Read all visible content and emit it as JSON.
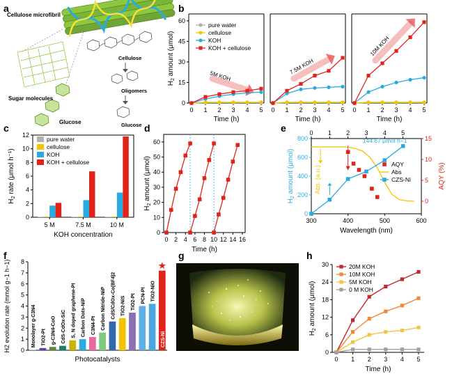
{
  "panel_labels": [
    "a",
    "b",
    "c",
    "d",
    "e",
    "f",
    "g",
    "h"
  ],
  "panel_a": {
    "labels": [
      "Cellulose microfibril",
      "Cellulose",
      "Oligomers",
      "Sugar molecules",
      "Glucose",
      "Glucose"
    ],
    "colors": {
      "fiber_green": "#8dc63f",
      "fiber_blue": "#29abe2",
      "fiber_yellow": "#f7e03c",
      "molecule": "#3a3a3a"
    }
  },
  "chart_data": [
    {
      "panel": "b",
      "type": "line",
      "title": "",
      "xlabel": "Time (h)",
      "ylabel": "H2 amount (μmol)",
      "ylim": [
        0,
        65
      ],
      "yticks": [
        0,
        15,
        30,
        45,
        60
      ],
      "xticks": [
        0,
        1,
        2,
        3,
        4,
        5
      ],
      "legend": [
        "pure water",
        "cellulose",
        "KOH",
        "KOH + cellulose"
      ],
      "legend_colors": [
        "#b0b0b0",
        "#f5c400",
        "#29abe2",
        "#e2231a"
      ],
      "groups": [
        {
          "annotation": "5M KOH",
          "x": [
            0,
            1,
            2,
            3,
            4,
            5
          ],
          "series": [
            {
              "name": "pure water",
              "values": [
                0,
                0.3,
                0.3,
                0.3,
                0.3,
                0.3
              ]
            },
            {
              "name": "cellulose",
              "values": [
                0,
                0.6,
                0.6,
                0.6,
                0.6,
                0.6
              ]
            },
            {
              "name": "KOH",
              "values": [
                0,
                3,
                5,
                6.5,
                7.5,
                8
              ]
            },
            {
              "name": "KOH + cellulose",
              "values": [
                0,
                4.5,
                6.5,
                8,
                9,
                10.5
              ]
            }
          ]
        },
        {
          "annotation": "7.5M KOH",
          "x": [
            0,
            1,
            2,
            3,
            4,
            5
          ],
          "series": [
            {
              "name": "pure water",
              "values": [
                0,
                0.3,
                0.3,
                0.3,
                0.3,
                0.3
              ]
            },
            {
              "name": "cellulose",
              "values": [
                0,
                0.6,
                0.6,
                0.6,
                0.6,
                0.6
              ]
            },
            {
              "name": "KOH",
              "values": [
                0,
                7,
                10,
                11,
                11.5,
                12
              ]
            },
            {
              "name": "KOH + cellulose",
              "values": [
                0,
                9,
                14,
                20,
                23.5,
                33
              ]
            }
          ]
        },
        {
          "annotation": "10M KOH",
          "x": [
            0,
            1,
            2,
            3,
            4,
            5
          ],
          "series": [
            {
              "name": "pure water",
              "values": [
                0,
                0.3,
                0.3,
                0.3,
                0.3,
                0.3
              ]
            },
            {
              "name": "cellulose",
              "values": [
                0,
                0.6,
                0.6,
                0.6,
                0.6,
                0.6
              ]
            },
            {
              "name": "KOH",
              "values": [
                0,
                8,
                12,
                15,
                17,
                18.5
              ]
            },
            {
              "name": "KOH + cellulose",
              "values": [
                0,
                20,
                29,
                38,
                48,
                59
              ]
            }
          ]
        }
      ]
    },
    {
      "panel": "c",
      "type": "bar",
      "xlabel": "KOH concentration",
      "ylabel": "H2 rate (μmol h−1)",
      "ylim": [
        0,
        12
      ],
      "yticks": [
        0,
        2,
        4,
        6,
        8,
        10,
        12
      ],
      "categories": [
        "5 M",
        "7.5 M",
        "10 M"
      ],
      "series": [
        {
          "name": "pure water",
          "color": "#b0b0b0",
          "values": [
            0.05,
            0.05,
            0.05
          ]
        },
        {
          "name": "cellulose",
          "color": "#f5c400",
          "values": [
            0.1,
            0.1,
            0.1
          ]
        },
        {
          "name": "KOH",
          "color": "#29abe2",
          "values": [
            1.7,
            2.5,
            3.6
          ]
        },
        {
          "name": "KOH + cellulose",
          "color": "#e2231a",
          "values": [
            2.1,
            6.7,
            11.8
          ]
        }
      ]
    },
    {
      "panel": "d",
      "type": "line",
      "xlabel": "Time (h)",
      "ylabel": "H2 amount (μmol)",
      "ylim": [
        0,
        65
      ],
      "yticks": [
        0,
        10,
        20,
        30,
        40,
        50,
        60
      ],
      "xticks": [
        0,
        2,
        4,
        6,
        8,
        10,
        12,
        14,
        16
      ],
      "xlim": [
        0,
        16
      ],
      "cycles": [
        {
          "x": [
            0,
            1,
            2,
            3,
            4,
            5
          ],
          "values": [
            0,
            15,
            29,
            40,
            51,
            59
          ]
        },
        {
          "x": [
            5,
            6,
            7,
            8,
            9,
            10
          ],
          "values": [
            0,
            11,
            22,
            36,
            48,
            59
          ]
        },
        {
          "x": [
            10,
            11,
            12,
            13,
            14,
            15
          ],
          "values": [
            0,
            12,
            23,
            35,
            47,
            58
          ]
        }
      ],
      "color": "#e2231a"
    },
    {
      "panel": "e",
      "type": "scatter",
      "xlabel": "Wavelength (nm)",
      "ylabel_left": "H2 amount (μmol)",
      "ylabel_right": "AQY (%)",
      "ylabel_abs": "Abs. (a.u.)",
      "xlim": [
        300,
        600
      ],
      "xticks": [
        300,
        400,
        500,
        600
      ],
      "top_xticks": [
        0,
        1,
        2,
        3,
        4,
        5
      ],
      "left_ylim": [
        0,
        800
      ],
      "left_yticks": [
        0,
        200,
        400,
        600,
        800
      ],
      "right_ylim": [
        -3,
        15
      ],
      "right_yticks": [
        0,
        5,
        10,
        15
      ],
      "annotation": "144.67 μmol h−1",
      "legend": [
        "AQY",
        "Abs",
        "CZS-Ni"
      ],
      "legend_colors": [
        "#e2231a",
        "#f5c400",
        "#29abe2"
      ],
      "czs_ni": {
        "x": [
          300,
          350,
          400,
          450,
          500,
          550
        ],
        "values": [
          0,
          150,
          370,
          450,
          570,
          720
        ]
      },
      "aqy": {
        "x": [
          400,
          415,
          430,
          445,
          465,
          480
        ],
        "values": [
          11.8,
          9.0,
          7.5,
          6.0,
          3.0,
          1.0
        ]
      },
      "abs": {
        "x": [
          300,
          350,
          400,
          420,
          440,
          460,
          480,
          500,
          520,
          540,
          560,
          580
        ],
        "values": [
          13,
          13,
          13,
          12.6,
          12,
          10.5,
          8,
          4.5,
          1.6,
          0.4,
          0.1,
          0
        ]
      }
    },
    {
      "panel": "f",
      "type": "bar",
      "xlabel": "Photocatalysts",
      "ylabel": "H2 evolution rate (mmol g−1 h−1)",
      "ylim": [
        0,
        8
      ],
      "yticks": [
        0,
        1,
        2,
        3,
        4,
        5,
        6,
        7,
        8
      ],
      "categories": [
        "Monolayer g-C3N4",
        "TiO2-Pt",
        "g-C3N4-CoO",
        "CdS-CdOx-SiC",
        "S, N doped graphene-Pt",
        "Carbon Dots-NiP",
        "C3N4-Pt",
        "Carbon Nitride-NiP",
        "CdS/CdOx-Co(BF4)2",
        "TiO2-NiS",
        "TiO2-Pt",
        "PCN-Pt",
        "TiO2-NiO",
        "CZS-Ni"
      ],
      "values": [
        0.05,
        0.2,
        0.3,
        0.4,
        0.9,
        1.0,
        1.2,
        1.6,
        2.6,
        2.9,
        3.4,
        4.0,
        4.2,
        7.2
      ],
      "colors": [
        "#9fd6ef",
        "#6b3fa0",
        "#5b8c3a",
        "#1b7e6a",
        "#c9b400",
        "#29abe2",
        "#e76aa1",
        "#7fc97f",
        "#3366aa",
        "#f5c400",
        "#8c6fb5",
        "#5bb0e6",
        "#4ca6e0",
        "#e2231a"
      ]
    },
    {
      "panel": "h",
      "type": "line",
      "xlabel": "Time (h)",
      "ylabel": "H2 amount (μmol)",
      "ylim": [
        0,
        30
      ],
      "yticks": [
        0,
        6,
        12,
        18,
        24,
        30
      ],
      "xticks": [
        0,
        1,
        2,
        3,
        4,
        5
      ],
      "series": [
        {
          "name": "20M KOH",
          "color": "#c0282d",
          "x": [
            0,
            1,
            2,
            3,
            4,
            5
          ],
          "values": [
            0,
            11,
            19,
            22.5,
            25,
            27.5
          ]
        },
        {
          "name": "10M KOH",
          "color": "#f08838",
          "x": [
            0,
            1,
            2,
            3,
            4,
            5
          ],
          "values": [
            0,
            7,
            11.5,
            14,
            16,
            18.5
          ]
        },
        {
          "name": "5M KOH",
          "color": "#f5c542",
          "x": [
            0,
            1,
            2,
            3,
            4,
            5
          ],
          "values": [
            0,
            3.5,
            6,
            7,
            7.5,
            8.5
          ]
        },
        {
          "name": "0 M KOH",
          "color": "#a0a0a0",
          "x": [
            0,
            1,
            2,
            3,
            4,
            5
          ],
          "values": [
            0,
            1,
            1,
            1,
            1,
            1
          ]
        }
      ]
    }
  ]
}
